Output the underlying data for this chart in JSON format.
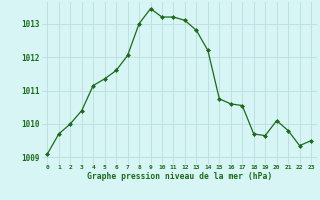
{
  "x": [
    0,
    1,
    2,
    3,
    4,
    5,
    6,
    7,
    8,
    9,
    10,
    11,
    12,
    13,
    14,
    15,
    16,
    17,
    18,
    19,
    20,
    21,
    22,
    23
  ],
  "y": [
    1009.1,
    1009.7,
    1010.0,
    1010.4,
    1011.15,
    1011.35,
    1011.6,
    1012.05,
    1013.0,
    1013.45,
    1013.2,
    1013.2,
    1013.1,
    1012.8,
    1012.2,
    1010.75,
    1010.6,
    1010.55,
    1009.7,
    1009.65,
    1010.1,
    1009.8,
    1009.35,
    1009.5
  ],
  "line_color": "#1a6b1a",
  "marker_color": "#1a6b1a",
  "bg_color": "#d8f5f5",
  "grid_color": "#b8dede",
  "xlabel": "Graphe pression niveau de la mer (hPa)",
  "xlabel_color": "#1a6b1a",
  "tick_color": "#1a6b1a",
  "ylim": [
    1008.8,
    1013.65
  ],
  "yticks": [
    1009,
    1010,
    1011,
    1012,
    1013
  ],
  "xticks": [
    0,
    1,
    2,
    3,
    4,
    5,
    6,
    7,
    8,
    9,
    10,
    11,
    12,
    13,
    14,
    15,
    16,
    17,
    18,
    19,
    20,
    21,
    22,
    23
  ]
}
